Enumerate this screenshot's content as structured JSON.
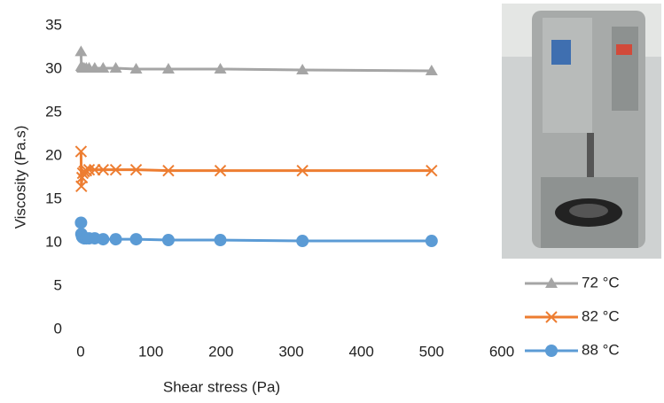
{
  "chart_data": {
    "type": "line",
    "x_label": "Shear stress (Pa)",
    "y_label": "Viscosity (Pa.s)",
    "xlim": [
      0,
      600
    ],
    "xticks": [
      0,
      100,
      200,
      300,
      400,
      500,
      600
    ],
    "ylim": [
      0,
      35
    ],
    "yticks": [
      0,
      5,
      10,
      15,
      20,
      25,
      30,
      35
    ],
    "grid": false,
    "legend": "lower right",
    "x": [
      0.5,
      1,
      2,
      3,
      5,
      8,
      12,
      20,
      32,
      50,
      79,
      125,
      199,
      316,
      500
    ],
    "series": [
      {
        "name": "72 °C",
        "color": "#a5a5a5",
        "marker": "triangle",
        "values": [
          32,
          30.3,
          30.2,
          30.1,
          30.1,
          30.1,
          30.1,
          30.1,
          30.1,
          30.1,
          30.0,
          30.0,
          30.0,
          29.9,
          29.8
        ]
      },
      {
        "name": "82 °C",
        "color": "#ed7d31",
        "marker": "x",
        "values": [
          20.5,
          16.5,
          17.5,
          18,
          18.2,
          18.3,
          18.4,
          18.4,
          18.4,
          18.4,
          18.4,
          18.3,
          18.3,
          18.3,
          18.3
        ]
      },
      {
        "name": "88 °C",
        "color": "#5b9bd5",
        "marker": "circle",
        "values": [
          12.3,
          11,
          10.7,
          10.6,
          10.5,
          10.5,
          10.5,
          10.5,
          10.4,
          10.4,
          10.4,
          10.3,
          10.3,
          10.2,
          10.2
        ]
      }
    ]
  }
}
